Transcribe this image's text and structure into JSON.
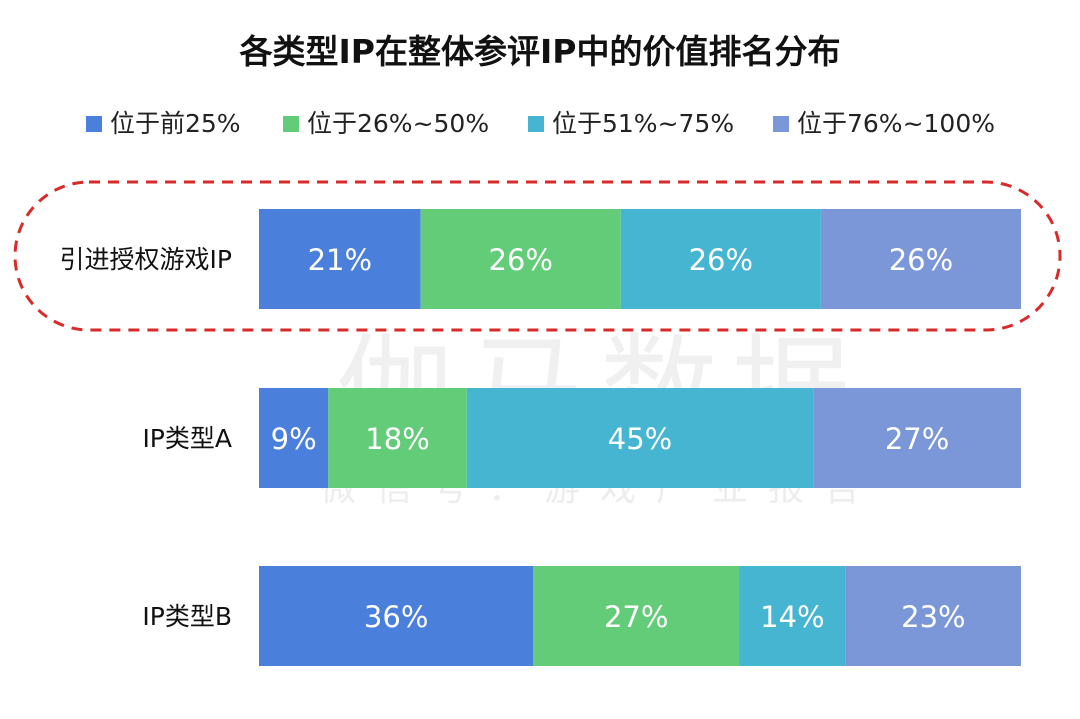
{
  "watermark": {
    "main": "伽马数据",
    "sub": "微信号：游戏产业报告"
  },
  "chart_data": {
    "type": "bar",
    "orientation": "horizontal",
    "stacked": true,
    "percent": true,
    "title": "各类型IP在整体参评IP中的价值排名分布",
    "legend_position": "top",
    "categories": [
      "引进授权游戏IP",
      "IP类型A",
      "IP类型B"
    ],
    "highlighted_category": "引进授权游戏IP",
    "series": [
      {
        "name": "位于前25%",
        "color": "#4a7fdc",
        "values": [
          21,
          9,
          36
        ]
      },
      {
        "name": "位于26%~50%",
        "color": "#63cc79",
        "values": [
          26,
          18,
          27
        ]
      },
      {
        "name": "位于51%~75%",
        "color": "#45b5d1",
        "values": [
          26,
          45,
          14
        ]
      },
      {
        "name": "位于76%~100%",
        "color": "#7b97d8",
        "values": [
          26,
          27,
          23
        ]
      }
    ],
    "data_labels": [
      [
        "21%",
        "9%",
        "36%"
      ],
      [
        "26%",
        "18%",
        "27%"
      ],
      [
        "26%",
        "45%",
        "14%"
      ],
      [
        "26%",
        "27%",
        "23%"
      ]
    ],
    "highlight_color": "#d92a2a",
    "label_color": "#ffffff"
  }
}
